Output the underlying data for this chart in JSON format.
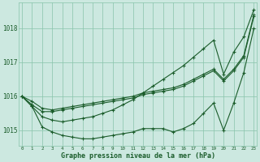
{
  "background_color": "#cce8e0",
  "grid_color": "#88c4aa",
  "line_color": "#1a5c2a",
  "title": "Graphe pression niveau de la mer (hPa)",
  "ylabel_values": [
    1015,
    1016,
    1017,
    1018
  ],
  "xlim": [
    -0.3,
    23.3
  ],
  "ylim": [
    1014.55,
    1018.75
  ],
  "x_ticks": [
    0,
    1,
    2,
    3,
    4,
    5,
    6,
    7,
    8,
    9,
    10,
    11,
    12,
    13,
    14,
    15,
    16,
    17,
    18,
    19,
    20,
    21,
    22,
    23
  ],
  "lines": [
    {
      "x": [
        0,
        1,
        2,
        3,
        4,
        5,
        6,
        7,
        8,
        9,
        10,
        11,
        12,
        13,
        14,
        15,
        16,
        17,
        18,
        19,
        20,
        21,
        22,
        23
      ],
      "y": [
        1016.0,
        1015.75,
        1015.55,
        1015.55,
        1015.6,
        1015.65,
        1015.7,
        1015.75,
        1015.8,
        1015.85,
        1015.9,
        1015.95,
        1016.05,
        1016.1,
        1016.15,
        1016.2,
        1016.3,
        1016.45,
        1016.6,
        1016.75,
        1016.45,
        1016.75,
        1017.15,
        1018.35
      ]
    },
    {
      "x": [
        0,
        1,
        2,
        3,
        4,
        5,
        6,
        7,
        8,
        9,
        10,
        11,
        12,
        13,
        14,
        15,
        16,
        17,
        18,
        19,
        20,
        21,
        22,
        23
      ],
      "y": [
        1016.0,
        1015.85,
        1015.65,
        1015.6,
        1015.65,
        1015.7,
        1015.75,
        1015.8,
        1015.85,
        1015.9,
        1015.95,
        1016.0,
        1016.1,
        1016.15,
        1016.2,
        1016.25,
        1016.35,
        1016.5,
        1016.65,
        1016.8,
        1016.5,
        1016.8,
        1017.2,
        1018.4
      ]
    },
    {
      "x": [
        0,
        1,
        2,
        3,
        4,
        5,
        6,
        7,
        8,
        9,
        10,
        11,
        12,
        13,
        14,
        15,
        16,
        17,
        18,
        19,
        20,
        21,
        22,
        23
      ],
      "y": [
        1016.0,
        1015.7,
        1015.4,
        1015.3,
        1015.25,
        1015.3,
        1015.35,
        1015.4,
        1015.5,
        1015.6,
        1015.75,
        1015.9,
        1016.1,
        1016.3,
        1016.5,
        1016.7,
        1016.9,
        1017.15,
        1017.4,
        1017.65,
        1016.65,
        1017.3,
        1017.75,
        1018.55
      ]
    },
    {
      "x": [
        0,
        1,
        2,
        3,
        4,
        5,
        6,
        7,
        8,
        9,
        10,
        11,
        12,
        13,
        14,
        15,
        16,
        17,
        18,
        19,
        20,
        21,
        22,
        23
      ],
      "y": [
        1016.0,
        1015.7,
        1015.1,
        1014.95,
        1014.85,
        1014.8,
        1014.75,
        1014.75,
        1014.8,
        1014.85,
        1014.9,
        1014.95,
        1015.05,
        1015.05,
        1015.05,
        1014.95,
        1015.05,
        1015.2,
        1015.5,
        1015.8,
        1015.0,
        1015.8,
        1016.7,
        1018.0
      ]
    }
  ]
}
